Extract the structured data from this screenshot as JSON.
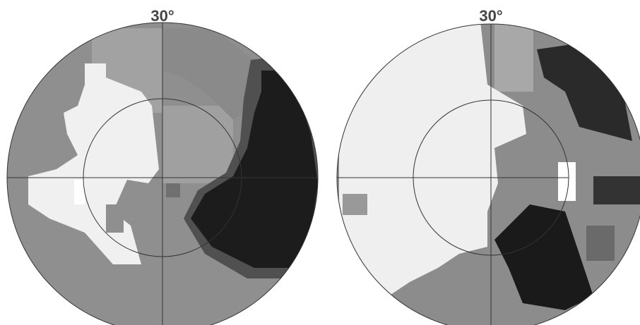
{
  "panels": [
    {
      "label": "30°"
    },
    {
      "label": "30°"
    }
  ]
}
